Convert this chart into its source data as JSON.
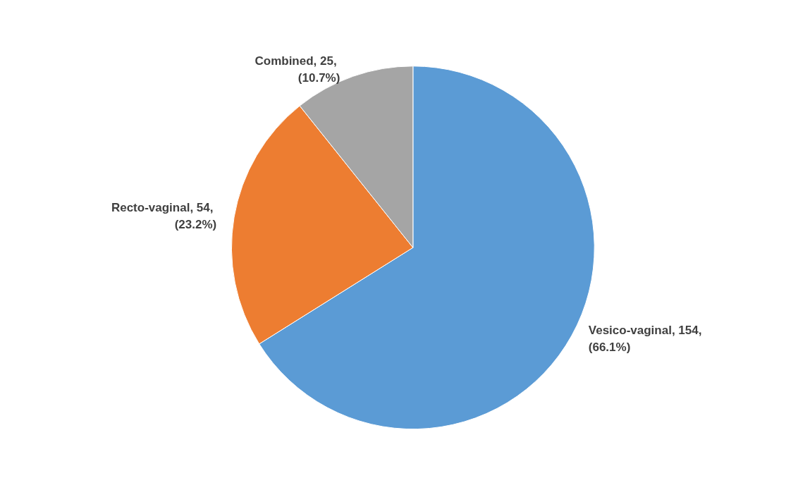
{
  "chart_data": {
    "type": "pie",
    "categories": [
      "Vesico-vaginal",
      "Recto-vaginal",
      "Combined"
    ],
    "values": [
      154,
      54,
      25
    ],
    "value_labels": [
      "154, (66.1%)",
      "54, (23.2%)",
      "25, (10.7%)"
    ],
    "colors": [
      "#5b9bd5",
      "#ed7d31",
      "#a5a5a5"
    ],
    "legend": false
  }
}
